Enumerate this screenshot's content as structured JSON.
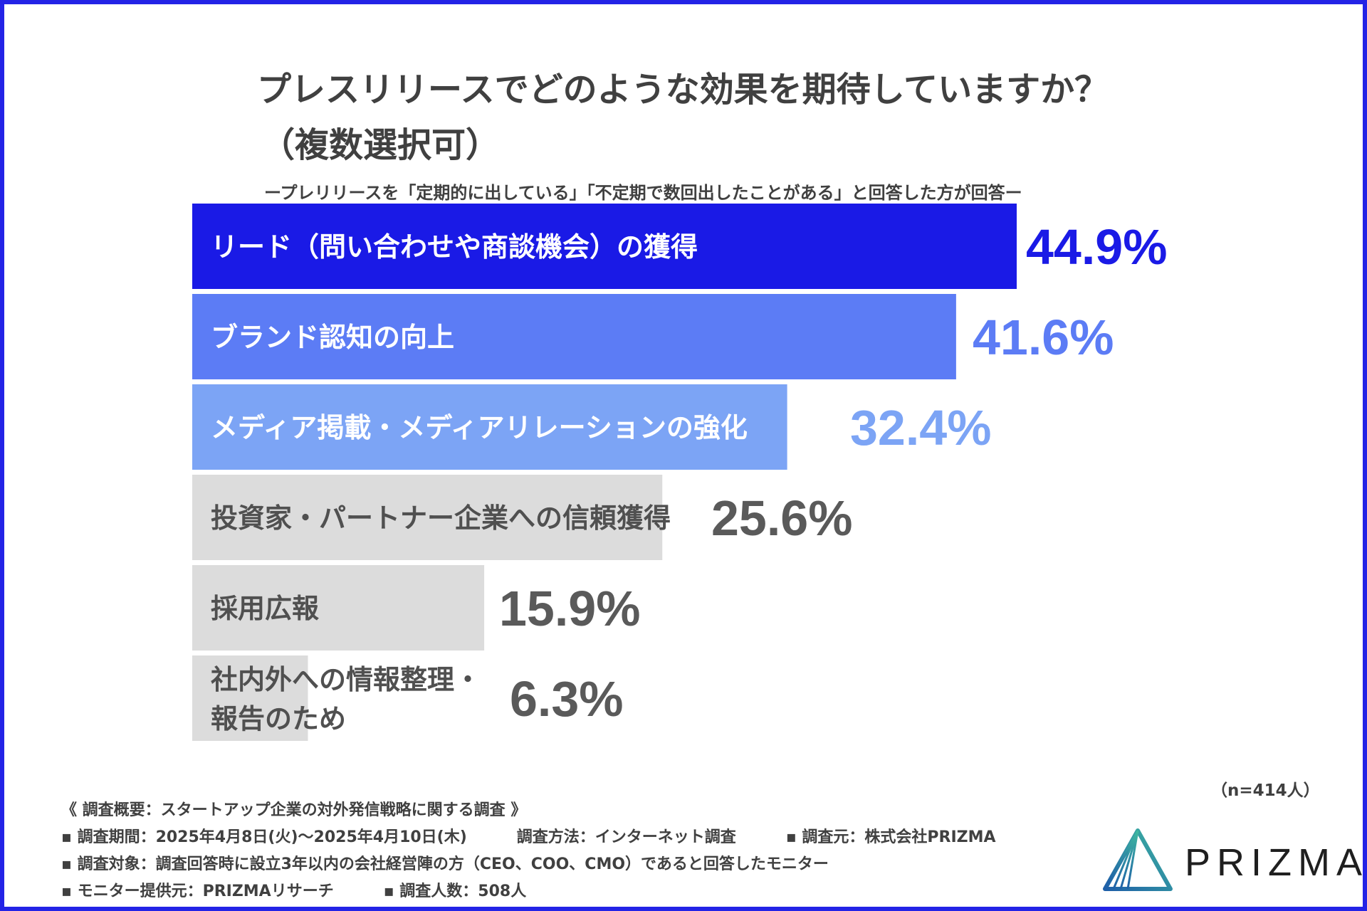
{
  "title_line1": "プレスリリースでどのような効果を期待していますか？",
  "title_line2": "（複数選択可）",
  "subtitle": "ープレリリースを「定期的に出している」「不定期で数回出したことがある」と回答した方が回答ー",
  "sample_size": "（n=414人）",
  "chart_data": {
    "type": "bar",
    "orientation": "horizontal",
    "categories": [
      "リード（問い合わせや商談機会）の獲得",
      "ブランド認知の向上",
      "メディア掲載・メディアリレーションの強化",
      "投資家・パートナー企業への信頼獲得",
      "採用広報",
      "社内外への情報整理・報告のため"
    ],
    "values": [
      44.9,
      41.6,
      32.4,
      25.6,
      15.9,
      6.3
    ],
    "value_labels": [
      "44.9%",
      "41.6%",
      "32.4%",
      "25.6%",
      "15.9%",
      "6.3%"
    ],
    "bar_colors": [
      "#1a1ae6",
      "#5c7cf5",
      "#7ca4f5",
      "#dcdcdc",
      "#dcdcdc",
      "#dcdcdc"
    ],
    "label_colors": [
      "#ffffff",
      "#ffffff",
      "#ffffff",
      "#505050",
      "#505050",
      "#505050"
    ],
    "value_colors": [
      "#1a1ae6",
      "#5c7cf5",
      "#7ca4f5",
      "#5a5a5a",
      "#5a5a5a",
      "#5a5a5a"
    ],
    "xlim": [
      0,
      50
    ],
    "grid": false,
    "legend": "none"
  },
  "footer": {
    "heading": "《 調査概要：スタートアップ企業の対外発信戦略に関する調査 》",
    "period": "▪ 調査期間：2025年4月8日(火)〜2025年4月10日(木)",
    "method": "調査方法：インターネット調査",
    "source": "▪ 調査元：株式会社PRIZMA",
    "target": "▪ 調査対象：調査回答時に設立3年以内の会社経営陣の方（CEO、COO、CMO）であると回答したモニター",
    "provider": "▪ モニター提供元：PRIZMAリサーチ",
    "count": "▪ 調査人数：508人"
  },
  "logo": {
    "text": "PRIZMA",
    "icon": "prizma-triangle-icon"
  }
}
